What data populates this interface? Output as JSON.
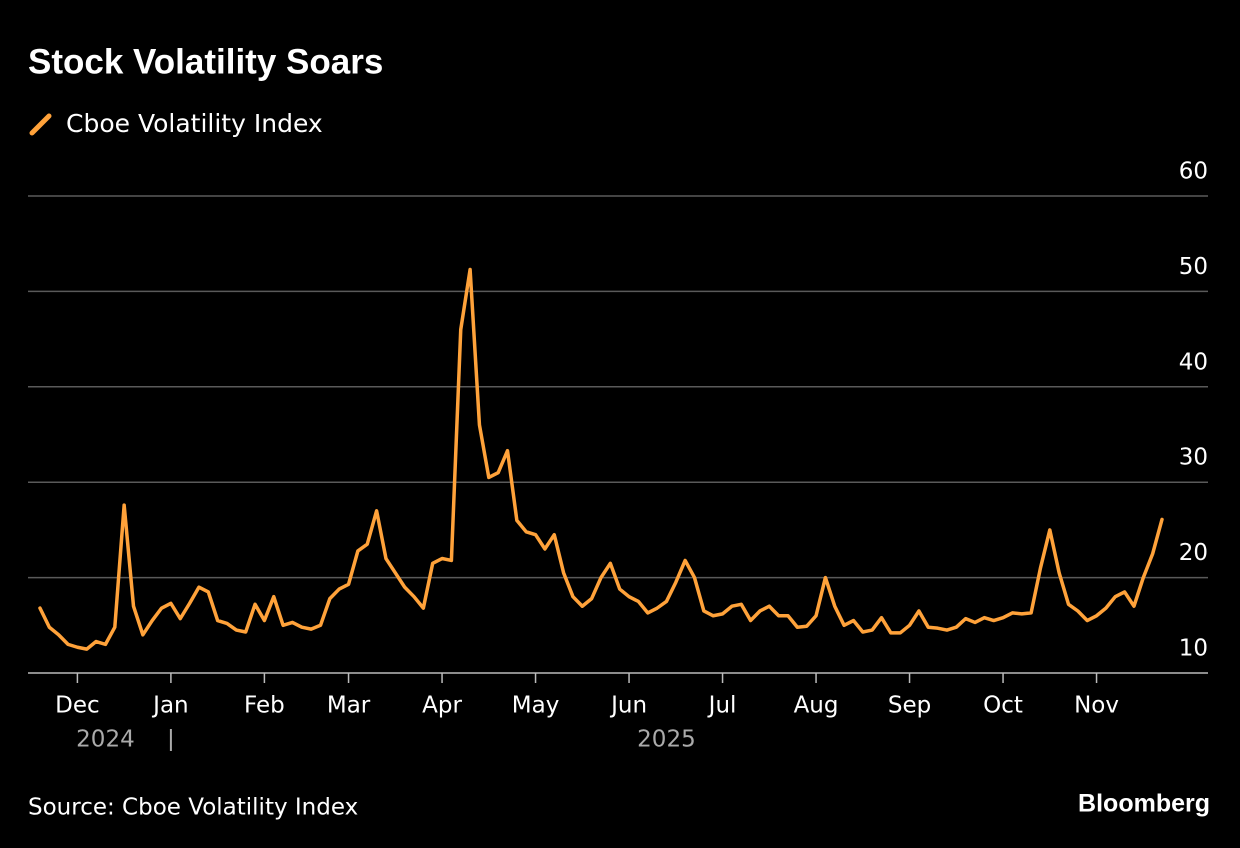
{
  "chart_data": {
    "type": "line",
    "title": "Stock Volatility Soars",
    "categories": [
      null,
      null,
      null,
      null,
      "Dec",
      null,
      null,
      null,
      null,
      null,
      null,
      null,
      null,
      null,
      "Jan",
      null,
      null,
      null,
      null,
      null,
      null,
      null,
      null,
      null,
      "Feb",
      null,
      null,
      null,
      null,
      null,
      null,
      null,
      null,
      "Mar",
      null,
      null,
      null,
      null,
      null,
      null,
      null,
      null,
      null,
      "Apr",
      null,
      null,
      null,
      null,
      null,
      null,
      null,
      null,
      null,
      "May",
      null,
      null,
      null,
      null,
      null,
      null,
      null,
      null,
      null,
      "Jun",
      null,
      null,
      null,
      null,
      null,
      null,
      null,
      null,
      null,
      "Jul",
      null,
      null,
      null,
      null,
      null,
      null,
      null,
      null,
      null,
      "Aug",
      null,
      null,
      null,
      null,
      null,
      null,
      null,
      null,
      null,
      "Sep",
      null,
      null,
      null,
      null,
      null,
      null,
      null,
      null,
      null,
      "Oct",
      null,
      null,
      null,
      null,
      null,
      null,
      null,
      null,
      null,
      "Nov",
      null,
      null,
      null,
      null,
      null,
      null,
      null
    ],
    "year_labels": [
      "2024",
      "2025"
    ],
    "series": [
      {
        "name": "Cboe Volatility Index",
        "color": "#ffa23a",
        "values": [
          16.8,
          14.8,
          14.0,
          13.0,
          12.7,
          12.5,
          13.3,
          13.0,
          14.8,
          27.6,
          17.0,
          14.0,
          15.5,
          16.8,
          17.3,
          15.7,
          17.3,
          19.0,
          18.5,
          15.5,
          15.2,
          14.5,
          14.3,
          17.2,
          15.5,
          18.0,
          15.0,
          15.3,
          14.8,
          14.6,
          15.0,
          17.8,
          18.8,
          19.3,
          22.8,
          23.5,
          27.0,
          22.0,
          20.5,
          19.0,
          18.0,
          16.8,
          21.5,
          22.0,
          21.8,
          46.0,
          52.3,
          36.0,
          30.5,
          31.0,
          33.3,
          26.0,
          24.8,
          24.5,
          23.0,
          24.5,
          20.5,
          18.0,
          17.0,
          17.8,
          20.0,
          21.5,
          18.8,
          18.0,
          17.5,
          16.3,
          16.8,
          17.5,
          19.5,
          21.8,
          20.0,
          16.5,
          16.0,
          16.2,
          17.0,
          17.2,
          15.5,
          16.5,
          17.0,
          16.0,
          16.0,
          14.8,
          14.9,
          16.0,
          20.0,
          17.0,
          15.0,
          15.5,
          14.3,
          14.5,
          15.8,
          14.2,
          14.2,
          15.0,
          16.5,
          14.8,
          14.7,
          14.5,
          14.8,
          15.7,
          15.3,
          15.8,
          15.5,
          15.8,
          16.3,
          16.2,
          16.3,
          21.0,
          25.0,
          20.5,
          17.2,
          16.5,
          15.5,
          16.0,
          16.8,
          18.0,
          18.5,
          17.0,
          20.0,
          22.5,
          26.1
        ]
      }
    ],
    "ylim": [
      10,
      60
    ],
    "yticks": [
      10,
      20,
      30,
      40,
      50,
      60
    ],
    "grid": true,
    "source": "Source: Cboe Volatility Index",
    "credit": "Bloomberg"
  }
}
